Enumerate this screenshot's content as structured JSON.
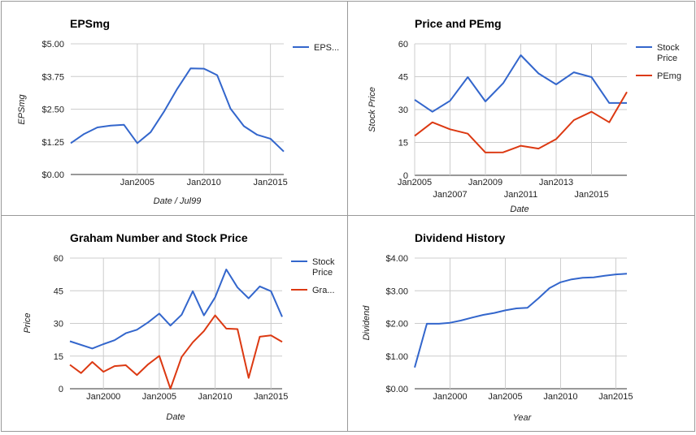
{
  "chart_data": [
    {
      "type": "line",
      "title": "EPSmg",
      "ylabel": "EPSmg",
      "xlabel": "Date / Jul99",
      "x": [
        2000,
        2001,
        2002,
        2003,
        2004,
        2005,
        2006,
        2007,
        2008,
        2009,
        2010,
        2011,
        2012,
        2013,
        2014,
        2015,
        2016
      ],
      "series": [
        {
          "name": "EPS...",
          "color": "#3366cc",
          "values": [
            1.2,
            1.55,
            1.8,
            1.87,
            1.9,
            1.2,
            1.62,
            2.4,
            3.28,
            4.06,
            4.05,
            3.8,
            2.52,
            1.85,
            1.52,
            1.37,
            0.88
          ]
        }
      ],
      "ylim": [
        0,
        5
      ],
      "yticks": [
        0,
        1.25,
        2.5,
        3.75,
        5
      ],
      "ytick_labels": [
        "$0.00",
        "$1.25",
        "$2.50",
        "$3.75",
        "$5.00"
      ],
      "xticks": [
        2005,
        2010,
        2015
      ],
      "xtick_labels": [
        "Jan2005",
        "Jan2010",
        "Jan2015"
      ],
      "legend": "right",
      "grid": true
    },
    {
      "type": "line",
      "title": "Price and PEmg",
      "ylabel": "Stock Price",
      "xlabel": "Date",
      "x": [
        2005,
        2006,
        2007,
        2008,
        2009,
        2010,
        2011,
        2012,
        2013,
        2014,
        2015,
        2016,
        2017
      ],
      "series": [
        {
          "name": "Stock Price",
          "color": "#3366cc",
          "values": [
            34.5,
            29,
            34,
            44.8,
            33.7,
            42,
            54.8,
            46.5,
            41.5,
            47,
            44.8,
            33,
            33
          ]
        },
        {
          "name": "PEmg",
          "color": "#dc3912",
          "values": [
            18,
            24.2,
            21,
            19,
            10.4,
            10.5,
            13.5,
            12.2,
            16.5,
            25.2,
            29,
            24.2,
            38
          ]
        }
      ],
      "ylim": [
        0,
        60
      ],
      "yticks": [
        0,
        15,
        30,
        45,
        60
      ],
      "ytick_labels": [
        "0",
        "15",
        "30",
        "45",
        "60"
      ],
      "xticks": [
        2005,
        2007,
        2009,
        2011,
        2013,
        2015
      ],
      "xtick_labels": [
        "Jan2005",
        "Jan2007",
        "Jan2009",
        "Jan2011",
        "Jan2013",
        "Jan2015"
      ],
      "legend": "right",
      "grid": true
    },
    {
      "type": "line",
      "title": "Graham Number and Stock Price",
      "ylabel": "Price",
      "xlabel": "Date",
      "x": [
        1997,
        1998,
        1999,
        2000,
        2001,
        2002,
        2003,
        2004,
        2005,
        2006,
        2007,
        2008,
        2009,
        2010,
        2011,
        2012,
        2013,
        2014,
        2015,
        2016
      ],
      "series": [
        {
          "name": "Stock Price",
          "color": "#3366cc",
          "x": [
            1997,
            1999,
            2000,
            2001,
            2002,
            2003,
            2004,
            2005,
            2006,
            2007,
            2008,
            2009,
            2010,
            2011,
            2012,
            2013,
            2014,
            2015,
            2016
          ],
          "values": [
            21.8,
            18.5,
            20.5,
            22.3,
            25.5,
            27.1,
            30.5,
            34.5,
            29,
            34,
            44.8,
            33.7,
            42,
            54.8,
            46.5,
            41.5,
            47,
            44.8,
            33
          ]
        },
        {
          "name": "Gra...",
          "color": "#dc3912",
          "x": [
            1997,
            1998,
            1999,
            2000,
            2001,
            2002,
            2003,
            2004,
            2005,
            2006,
            2007,
            2008,
            2009,
            2010,
            2011,
            2012,
            2013,
            2014,
            2015,
            2016
          ],
          "values": [
            11,
            7.2,
            12.3,
            7.8,
            10.4,
            10.8,
            6.3,
            11.2,
            15.1,
            0,
            14.6,
            21.3,
            26.5,
            33.7,
            27.6,
            27.4,
            5,
            23.9,
            24.5,
            21.5
          ]
        }
      ],
      "ylim": [
        0,
        60
      ],
      "yticks": [
        0,
        15,
        30,
        45,
        60
      ],
      "ytick_labels": [
        "0",
        "15",
        "30",
        "45",
        "60"
      ],
      "xticks": [
        2000,
        2005,
        2010,
        2015
      ],
      "xtick_labels": [
        "Jan2000",
        "Jan2005",
        "Jan2010",
        "Jan2015"
      ],
      "legend": "right",
      "grid": true
    },
    {
      "type": "line",
      "title": "Dividend History",
      "ylabel": "Dividend",
      "xlabel": "Year",
      "x": [
        1996.8,
        1997.9,
        1999,
        2000,
        2001,
        2002,
        2003,
        2004,
        2005,
        2006,
        2007,
        2008,
        2009,
        2010,
        2011,
        2012,
        2013,
        2014,
        2015,
        2016
      ],
      "series": [
        {
          "name": "Dividend",
          "color": "#3366cc",
          "values": [
            0.65,
            1.99,
            1.99,
            2.02,
            2.09,
            2.18,
            2.26,
            2.32,
            2.4,
            2.46,
            2.48,
            2.77,
            3.08,
            3.26,
            3.35,
            3.4,
            3.41,
            3.46,
            3.5,
            3.52
          ]
        }
      ],
      "ylim": [
        0,
        4
      ],
      "yticks": [
        0,
        1,
        2,
        3,
        4
      ],
      "ytick_labels": [
        "$0.00",
        "$1.00",
        "$2.00",
        "$3.00",
        "$4.00"
      ],
      "xticks": [
        2000,
        2005,
        2010,
        2015
      ],
      "xtick_labels": [
        "Jan2000",
        "Jan2005",
        "Jan2010",
        "Jan2015"
      ],
      "legend": "none",
      "grid": true
    }
  ]
}
